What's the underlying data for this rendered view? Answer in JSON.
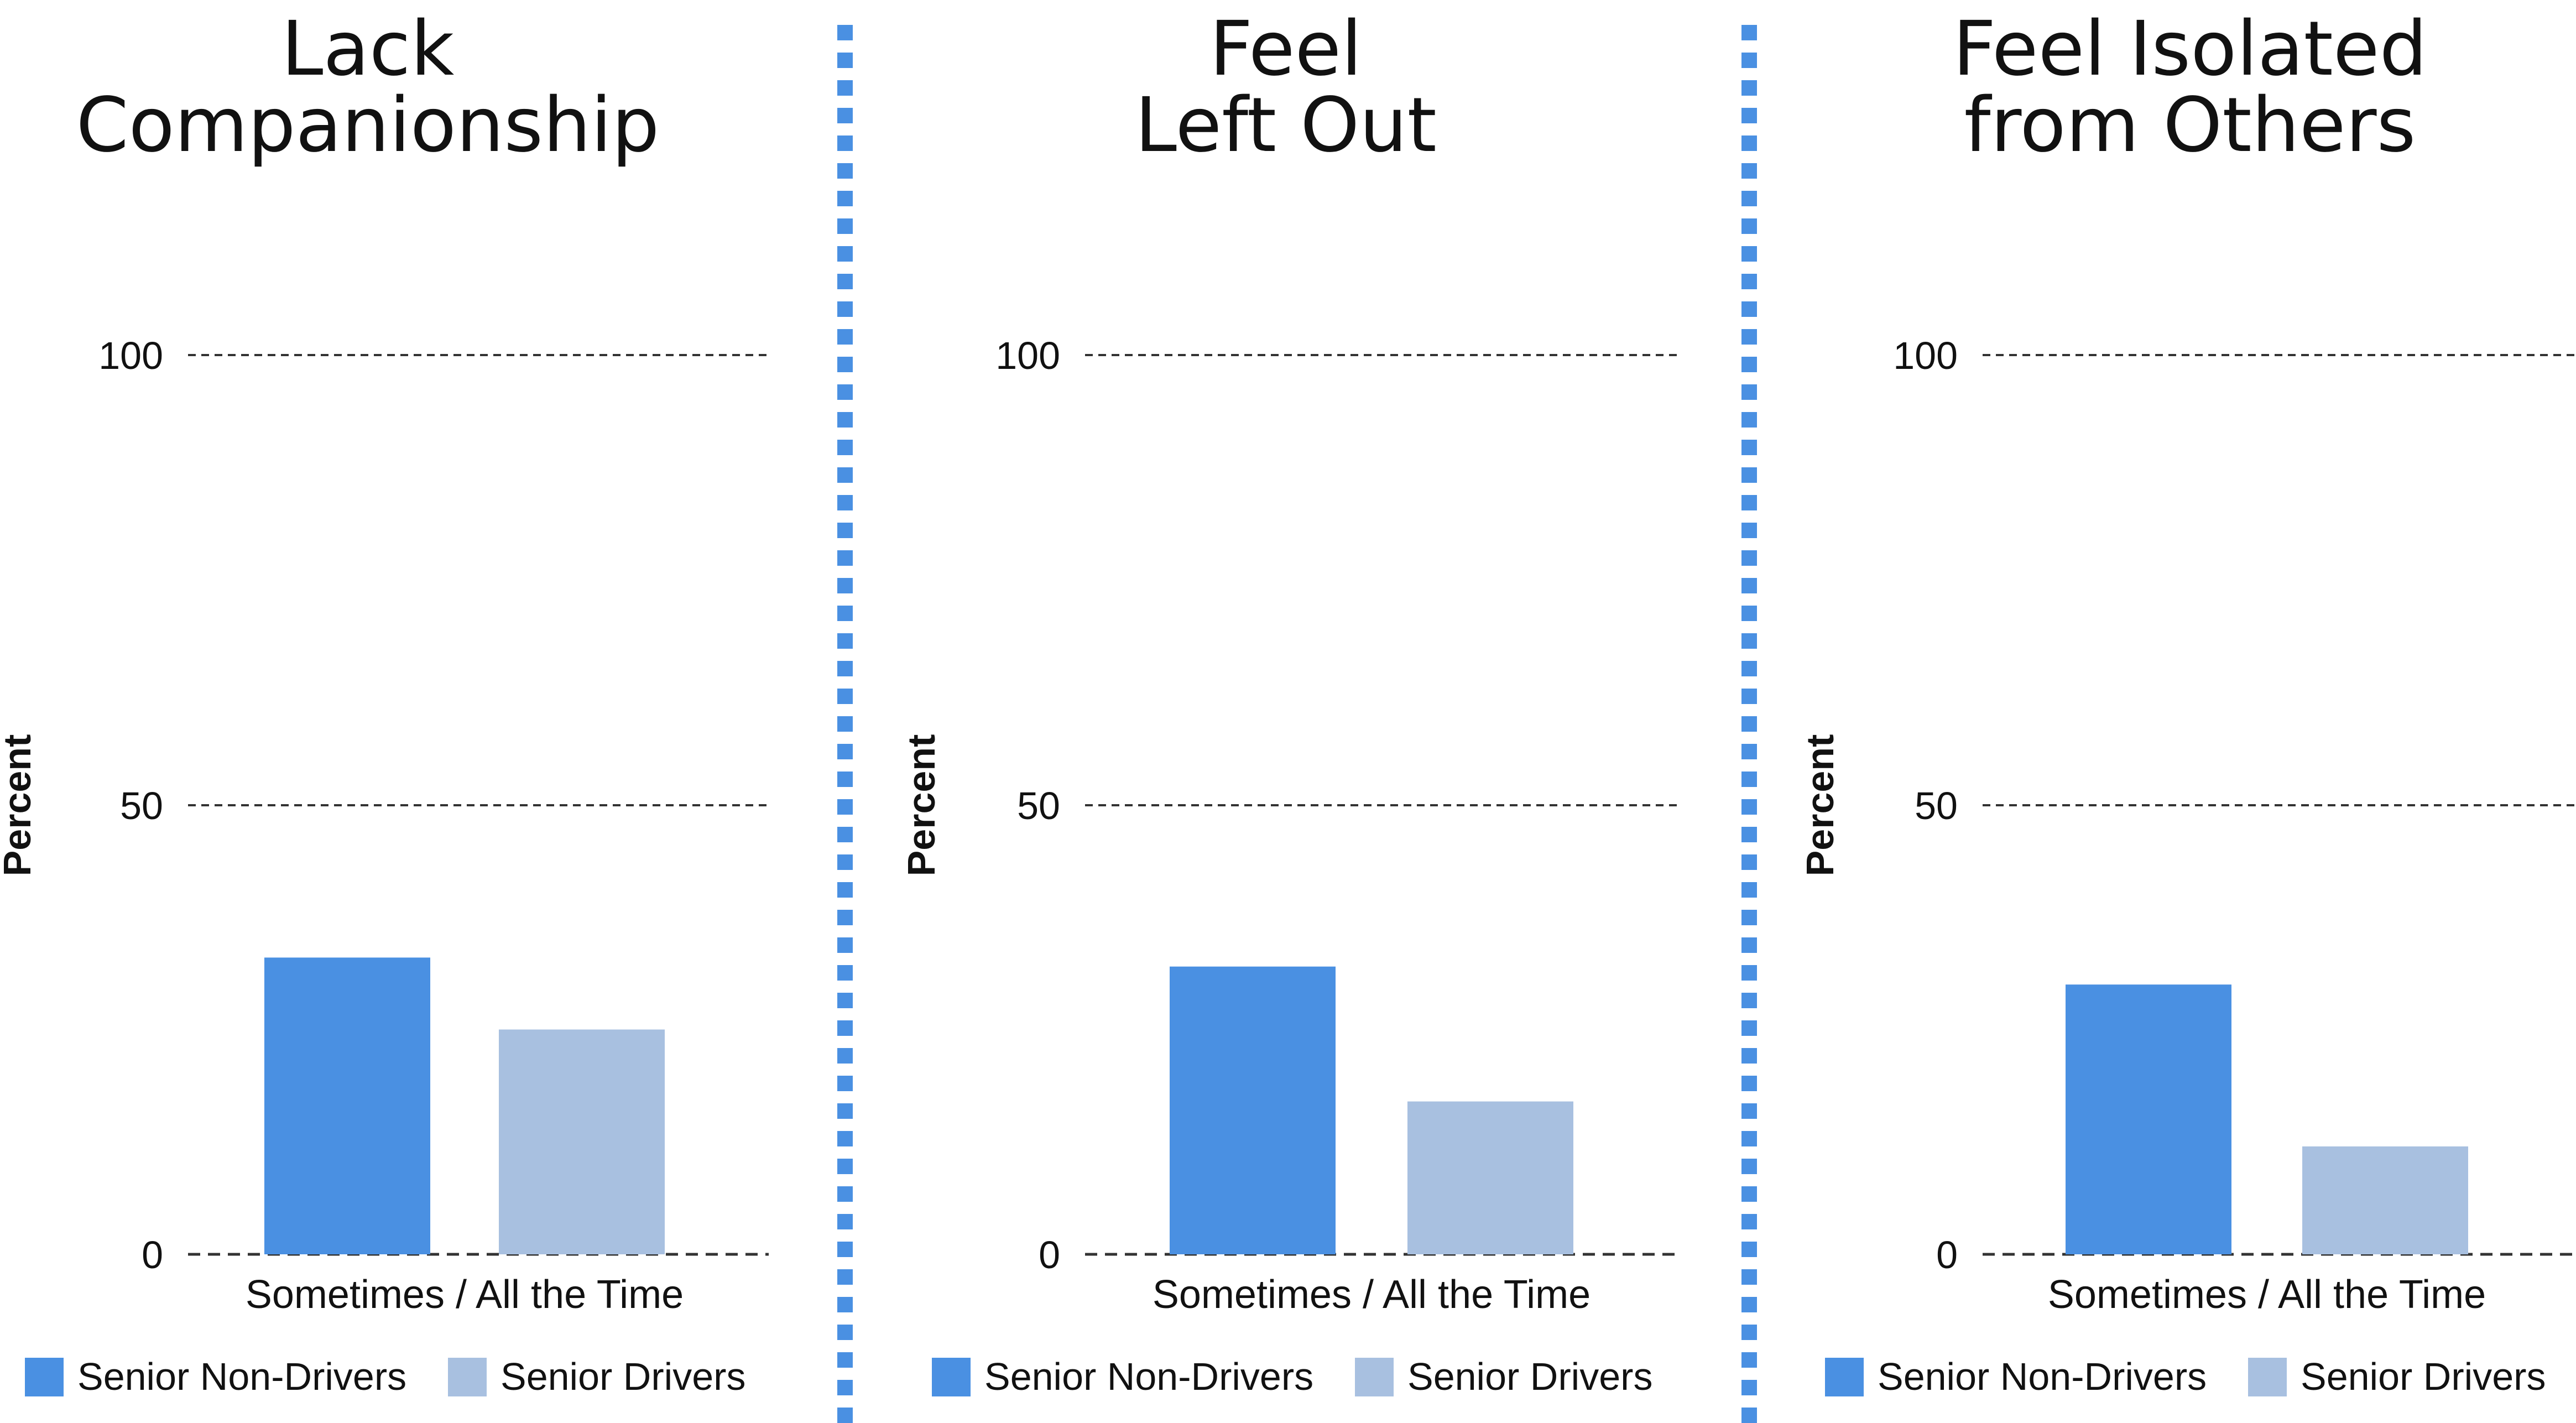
{
  "colors": {
    "non_drivers": "#4a90e2",
    "drivers": "#a8c0e0",
    "divider": "#4a90e2",
    "grid": "#333333",
    "text": "#111111"
  },
  "chart_data": [
    {
      "type": "bar",
      "title_lines": [
        "Lack",
        "Companionship"
      ],
      "ylabel": "Percent",
      "xlabel": "Sometimes / All the Time",
      "ylim": [
        0,
        100
      ],
      "yticks": [
        "0",
        "50",
        "100"
      ],
      "grid": true,
      "legend_position": "bottom",
      "series": [
        {
          "name": "Senior Non-Drivers",
          "values": [
            33
          ],
          "color_key": "non_drivers"
        },
        {
          "name": "Senior Drivers",
          "values": [
            25
          ],
          "color_key": "drivers"
        }
      ]
    },
    {
      "type": "bar",
      "title_lines": [
        "Feel",
        "Left Out"
      ],
      "ylabel": "Percent",
      "xlabel": "Sometimes / All the Time",
      "ylim": [
        0,
        100
      ],
      "yticks": [
        "0",
        "50",
        "100"
      ],
      "grid": true,
      "legend_position": "bottom",
      "series": [
        {
          "name": "Senior Non-Drivers",
          "values": [
            32
          ],
          "color_key": "non_drivers"
        },
        {
          "name": "Senior Drivers",
          "values": [
            17
          ],
          "color_key": "drivers"
        }
      ]
    },
    {
      "type": "bar",
      "title_lines": [
        "Feel Isolated",
        "from Others"
      ],
      "ylabel": "Percent",
      "xlabel": "Sometimes / All the Time",
      "ylim": [
        0,
        100
      ],
      "yticks": [
        "0",
        "50",
        "100"
      ],
      "grid": true,
      "legend_position": "bottom",
      "series": [
        {
          "name": "Senior Non-Drivers",
          "values": [
            30
          ],
          "color_key": "non_drivers"
        },
        {
          "name": "Senior Drivers",
          "values": [
            12
          ],
          "color_key": "drivers"
        }
      ]
    }
  ]
}
